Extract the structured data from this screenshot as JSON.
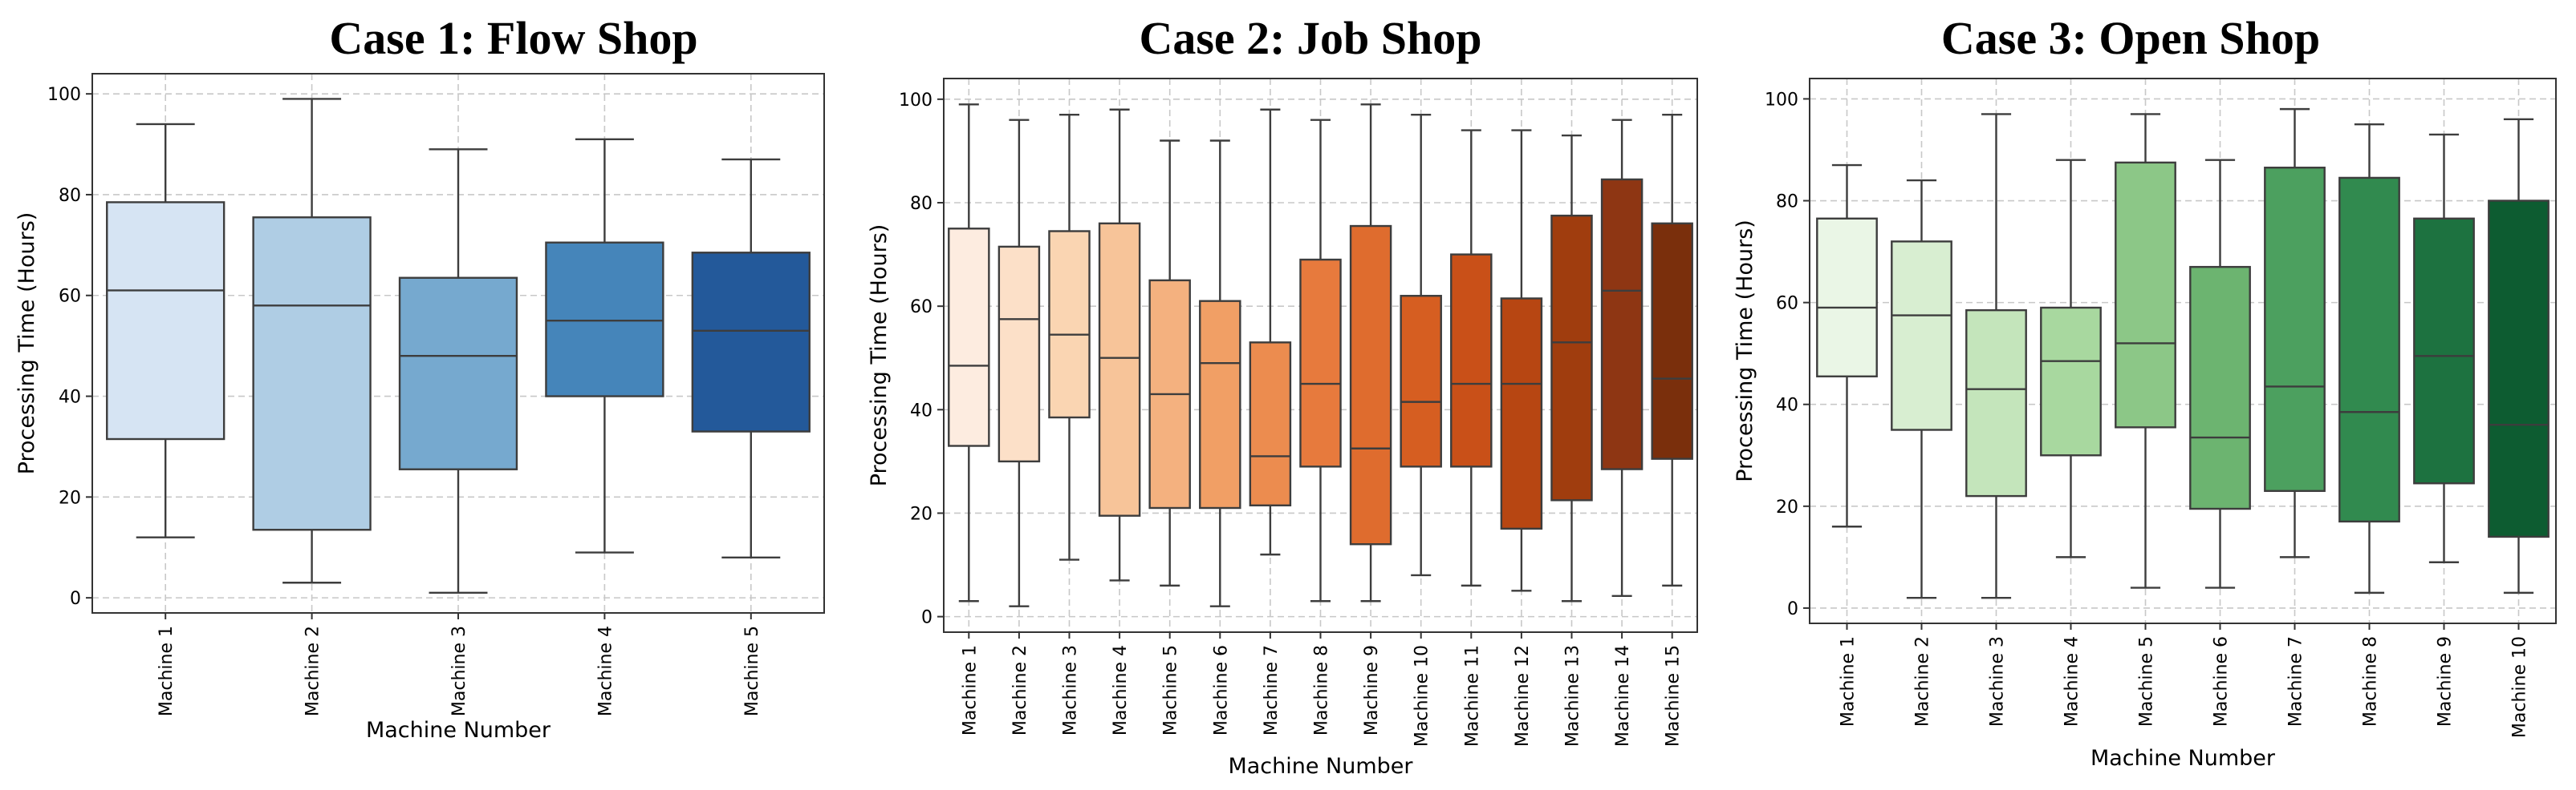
{
  "chart_data": [
    {
      "type": "box",
      "title": "Case 1: Flow Shop",
      "xlabel": "Machine Number",
      "ylabel": "Processing Time (Hours)",
      "ylim": [
        -3,
        104
      ],
      "yticks": [
        0,
        20,
        40,
        60,
        80,
        100
      ],
      "grid": true,
      "categories": [
        "Machine 1",
        "Machine 2",
        "Machine 3",
        "Machine 4",
        "Machine 5"
      ],
      "boxes": [
        {
          "min": 12,
          "q1": 31.5,
          "median": 61,
          "q3": 78.5,
          "max": 94
        },
        {
          "min": 3,
          "q1": 13.5,
          "median": 58,
          "q3": 75.5,
          "max": 99
        },
        {
          "min": 1,
          "q1": 25.5,
          "median": 48,
          "q3": 63.5,
          "max": 89
        },
        {
          "min": 9,
          "q1": 40,
          "median": 55,
          "q3": 70.5,
          "max": 91
        },
        {
          "min": 8,
          "q1": 33,
          "median": 53,
          "q3": 68.5,
          "max": 87
        }
      ],
      "colors": [
        "#d6e4f3",
        "#afcde4",
        "#76a9cf",
        "#4585ba",
        "#23599a"
      ]
    },
    {
      "type": "box",
      "title": "Case 2: Job Shop",
      "xlabel": "Machine Number",
      "ylabel": "Processing Time (Hours)",
      "ylim": [
        -3,
        104
      ],
      "yticks": [
        0,
        20,
        40,
        60,
        80,
        100
      ],
      "grid": true,
      "categories": [
        "Machine 1",
        "Machine 2",
        "Machine 3",
        "Machine 4",
        "Machine 5",
        "Machine 6",
        "Machine 7",
        "Machine 8",
        "Machine 9",
        "Machine 10",
        "Machine 11",
        "Machine 12",
        "Machine 13",
        "Machine 14",
        "Machine 15"
      ],
      "boxes": [
        {
          "min": 3,
          "q1": 33,
          "median": 48.5,
          "q3": 75,
          "max": 99
        },
        {
          "min": 2,
          "q1": 30,
          "median": 57.5,
          "q3": 71.5,
          "max": 96
        },
        {
          "min": 11,
          "q1": 38.5,
          "median": 54.5,
          "q3": 74.5,
          "max": 97
        },
        {
          "min": 7,
          "q1": 19.5,
          "median": 50,
          "q3": 76,
          "max": 98
        },
        {
          "min": 6,
          "q1": 21,
          "median": 43,
          "q3": 65,
          "max": 92
        },
        {
          "min": 2,
          "q1": 21,
          "median": 49,
          "q3": 61,
          "max": 92
        },
        {
          "min": 12,
          "q1": 21.5,
          "median": 31,
          "q3": 53,
          "max": 98
        },
        {
          "min": 3,
          "q1": 29,
          "median": 45,
          "q3": 69,
          "max": 96
        },
        {
          "min": 3,
          "q1": 14,
          "median": 32.5,
          "q3": 75.5,
          "max": 99
        },
        {
          "min": 8,
          "q1": 29,
          "median": 41.5,
          "q3": 62,
          "max": 97
        },
        {
          "min": 6,
          "q1": 29,
          "median": 45,
          "q3": 70,
          "max": 94
        },
        {
          "min": 5,
          "q1": 17,
          "median": 45,
          "q3": 61.5,
          "max": 94
        },
        {
          "min": 3,
          "q1": 22.5,
          "median": 53,
          "q3": 77.5,
          "max": 93
        },
        {
          "min": 4,
          "q1": 28.5,
          "median": 63,
          "q3": 84.5,
          "max": 96
        },
        {
          "min": 6,
          "q1": 30.5,
          "median": 46,
          "q3": 76,
          "max": 97
        }
      ],
      "colors": [
        "#fdece0",
        "#fce0c8",
        "#fad5b2",
        "#f7c499",
        "#f4b17f",
        "#f19f65",
        "#ec8c4f",
        "#e77a3d",
        "#df6c2e",
        "#d65e21",
        "#c95018",
        "#b74612",
        "#a03d0e",
        "#8e3613",
        "#7a2f0c"
      ]
    },
    {
      "type": "box",
      "title": "Case 3: Open Shop",
      "xlabel": "Machine Number",
      "ylabel": "Processing Time (Hours)",
      "ylim": [
        -3,
        104
      ],
      "yticks": [
        0,
        20,
        40,
        60,
        80,
        100
      ],
      "grid": true,
      "categories": [
        "Machine 1",
        "Machine 2",
        "Machine 3",
        "Machine 4",
        "Machine 5",
        "Machine 6",
        "Machine 7",
        "Machine 8",
        "Machine 9",
        "Machine 10"
      ],
      "boxes": [
        {
          "min": 16,
          "q1": 45.5,
          "median": 59,
          "q3": 76.5,
          "max": 87
        },
        {
          "min": 2,
          "q1": 35,
          "median": 57.5,
          "q3": 72,
          "max": 84
        },
        {
          "min": 2,
          "q1": 22,
          "median": 43,
          "q3": 58.5,
          "max": 97
        },
        {
          "min": 10,
          "q1": 30,
          "median": 48.5,
          "q3": 59,
          "max": 88
        },
        {
          "min": 4,
          "q1": 35.5,
          "median": 52,
          "q3": 87.5,
          "max": 97
        },
        {
          "min": 4,
          "q1": 19.5,
          "median": 33.5,
          "q3": 67,
          "max": 88
        },
        {
          "min": 10,
          "q1": 23,
          "median": 43.5,
          "q3": 86.5,
          "max": 98
        },
        {
          "min": 3,
          "q1": 17,
          "median": 38.5,
          "q3": 84.5,
          "max": 95
        },
        {
          "min": 9,
          "q1": 24.5,
          "median": 49.5,
          "q3": 76.5,
          "max": 93
        },
        {
          "min": 3,
          "q1": 14,
          "median": 36,
          "q3": 80,
          "max": 96
        }
      ],
      "colors": [
        "#eaf6e6",
        "#d8eed1",
        "#c4e5bb",
        "#a8d89f",
        "#8cc787",
        "#6cb470",
        "#4ca05f",
        "#318a4f",
        "#1d7240",
        "#0d5c31"
      ]
    }
  ]
}
